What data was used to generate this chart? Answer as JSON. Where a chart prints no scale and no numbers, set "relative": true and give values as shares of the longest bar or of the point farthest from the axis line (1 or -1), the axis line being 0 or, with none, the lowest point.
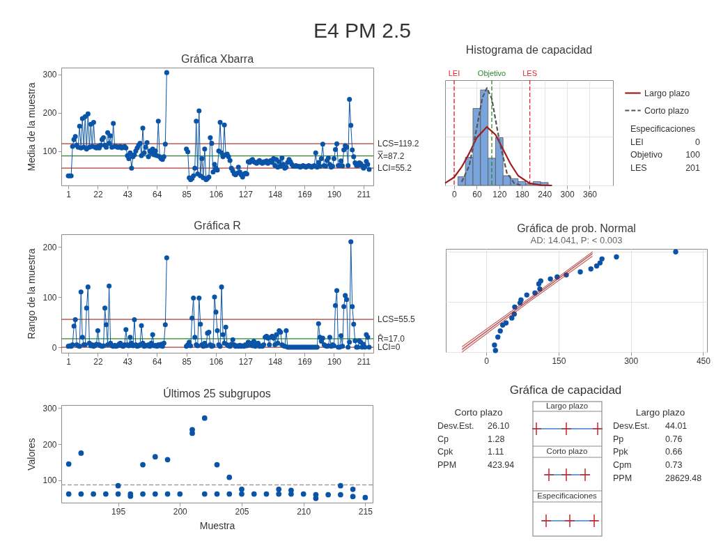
{
  "chart_data": [
    {
      "type": "other",
      "title": "E4 PM 2.5"
    },
    {
      "type": "line",
      "title": "Gráfica Xbarra",
      "ylabel": "Media de la muestra",
      "marker": "circle",
      "x": [
        1,
        2,
        3,
        4,
        5,
        6,
        7,
        8,
        9,
        10,
        11,
        12,
        13,
        14,
        15,
        16,
        17,
        18,
        19,
        20,
        21,
        22,
        23,
        24,
        25,
        26,
        27,
        28,
        29,
        30,
        31,
        32,
        33,
        34,
        35,
        36,
        37,
        38,
        39,
        40,
        41,
        42,
        43,
        44,
        45,
        46,
        47,
        48,
        49,
        50,
        51,
        52,
        53,
        54,
        55,
        56,
        57,
        58,
        59,
        60,
        61,
        62,
        63,
        64,
        65,
        66,
        67,
        68,
        69,
        70,
        71,
        72,
        73,
        74,
        75,
        76,
        77,
        78,
        79,
        80,
        81,
        82,
        83,
        84,
        85,
        86,
        87,
        88,
        89,
        90,
        91,
        92,
        93,
        94,
        95,
        96,
        97,
        98,
        99,
        100,
        101,
        102,
        103,
        104,
        105,
        106,
        107,
        108,
        109,
        110,
        111,
        112,
        113,
        114,
        115,
        116,
        117,
        118,
        119,
        120,
        121,
        122,
        123,
        124,
        125,
        126,
        127,
        128,
        129,
        130,
        131,
        132,
        133,
        134,
        135,
        136,
        137,
        138,
        139,
        140,
        141,
        142,
        143,
        144,
        145,
        146,
        147,
        148,
        149,
        150,
        151,
        152,
        153,
        154,
        155,
        156,
        157,
        158,
        159,
        160,
        161,
        162,
        163,
        164,
        165,
        166,
        167,
        168,
        169,
        170,
        171,
        172,
        173,
        174,
        175,
        176,
        177,
        178,
        179,
        180,
        181,
        182,
        183,
        184,
        185,
        186,
        187,
        188,
        189,
        190,
        191,
        192,
        193,
        194,
        195,
        196,
        197,
        198,
        199,
        200,
        201,
        202,
        203,
        204,
        205,
        206,
        207,
        208,
        209,
        210,
        211,
        212,
        213,
        214,
        215
      ],
      "xlim": [
        -4,
        218
      ],
      "xticks": [
        1,
        22,
        43,
        64,
        85,
        106,
        127,
        148,
        169,
        190,
        211
      ],
      "ylim": [
        10,
        318
      ],
      "yticks": [
        100,
        200,
        300
      ],
      "series": [
        {
          "color": "#0a54a8",
          "values": [
            35,
            35,
            35,
            112,
            130,
            138,
            115,
            110,
            165,
            108,
            185,
            110,
            190,
            105,
            197,
            110,
            170,
            112,
            175,
            110,
            108,
            112,
            108,
            115,
            130,
            135,
            115,
            110,
            148,
            120,
            140,
            110,
            172,
            112,
            112,
            110,
            110,
            112,
            108,
            110,
            112,
            108,
            88,
            80,
            95,
            55,
            85,
            90,
            100,
            108,
            115,
            120,
            88,
            160,
            95,
            110,
            122,
            85,
            100,
            95,
            105,
            90,
            100,
            88,
            178,
            85,
            80,
            78,
            85,
            118,
            305,
            null,
            null,
            null,
            null,
            null,
            null,
            null,
            null,
            null,
            null,
            null,
            null,
            null,
            105,
            98,
            30,
            25,
            28,
            35,
            55,
            178,
            40,
            205,
            35,
            80,
            30,
            105,
            25,
            28,
            32,
            135,
            120,
            45,
            65,
            55,
            50,
            100,
            175,
            95,
            85,
            168,
            90,
            92,
            85,
            75,
            55,
            48,
            40,
            38,
            42,
            58,
            45,
            38,
            32,
            40,
            42,
            40,
            72,
            70,
            75,
            78,
            72,
            70,
            68,
            72,
            75,
            70,
            68,
            72,
            70,
            74,
            68,
            72,
            75,
            70,
            80,
            62,
            78,
            58,
            72,
            60,
            82,
            65,
            55,
            58,
            70,
            78,
            72,
            65,
            60,
            60,
            62,
            60,
            60,
            58,
            60,
            62,
            60,
            58,
            60,
            62,
            60,
            58,
            60,
            62,
            95,
            58,
            70,
            60,
            80,
            118,
            62,
            60,
            75,
            82,
            65,
            58,
            60,
            80,
            104,
            119,
            62,
            62,
            74,
            61,
            103,
            114,
            110,
            62,
            235,
            167,
            103,
            85,
            69,
            62,
            62,
            69,
            67,
            62,
            55,
            60,
            73,
            65,
            52
          ]
        }
      ],
      "ref_lines": [
        {
          "axis": "y",
          "value": 119.2,
          "label": "LCS=119.2",
          "color": "#b03a32"
        },
        {
          "axis": "y",
          "value": 87.2,
          "label": "X̿=87.2",
          "color": "#2a8a2a"
        },
        {
          "axis": "y",
          "value": 55.2,
          "label": "LCI=55.2",
          "color": "#b03a32"
        }
      ]
    },
    {
      "type": "histogram",
      "title": "Histograma de capacidad",
      "relative": true,
      "bins": [
        10,
        30,
        50,
        70,
        90,
        110,
        130,
        150,
        170,
        190,
        210,
        230,
        250
      ],
      "values": [
        0.09,
        0.29,
        0.79,
        0.98,
        0.28,
        0.49,
        0.1,
        0.07,
        0.04,
        0.02,
        0.04,
        0.03
      ],
      "color": "#7aa5dc",
      "xlim": [
        -24,
        422
      ],
      "xticks": [
        0,
        60,
        120,
        180,
        240,
        300,
        360
      ],
      "grid": true,
      "legend": "right",
      "series": [
        {
          "type": "line",
          "name": "Largo plazo",
          "color": "#a01c1c",
          "x": [
            -24,
            0,
            20,
            40,
            60,
            87,
            110,
            130,
            150,
            170,
            200,
            230,
            260
          ],
          "values": [
            0.024,
            0.084,
            0.19,
            0.33,
            0.49,
            0.6,
            0.52,
            0.37,
            0.22,
            0.1,
            0.023,
            0.003,
            0
          ]
        },
        {
          "type": "line",
          "name": "Corto plazo",
          "color": "#555555",
          "line_style": "dashed",
          "x": [
            20,
            40,
            60,
            75,
            87,
            100,
            120,
            140,
            160,
            180
          ],
          "values": [
            0.036,
            0.2,
            0.59,
            0.9,
            1,
            0.89,
            0.46,
            0.13,
            0.02,
            0
          ]
        }
      ],
      "ref_lines": [
        {
          "axis": "x",
          "value": 0,
          "label": "LEI",
          "color": "#e0242a",
          "line_style": "dashed"
        },
        {
          "axis": "x",
          "value": 100,
          "label": "Objetivo",
          "color": "#2a8a2a",
          "line_style": "dashed"
        },
        {
          "axis": "x",
          "value": 201,
          "label": "LES",
          "color": "#e0242a",
          "line_style": "dashed"
        }
      ],
      "annotations": [
        "Especificaciones",
        "LEI",
        "0",
        "Objetivo",
        "100",
        "LES",
        "201"
      ]
    },
    {
      "type": "line",
      "title": "Gráfica R",
      "ylabel": "Rango de la muestra",
      "marker": "circle",
      "x": [
        1,
        2,
        3,
        4,
        5,
        6,
        7,
        8,
        9,
        10,
        11,
        12,
        13,
        14,
        15,
        16,
        17,
        18,
        19,
        20,
        21,
        22,
        23,
        24,
        25,
        26,
        27,
        28,
        29,
        30,
        31,
        32,
        33,
        34,
        35,
        36,
        37,
        38,
        39,
        40,
        41,
        42,
        43,
        44,
        45,
        46,
        47,
        48,
        49,
        50,
        51,
        52,
        53,
        54,
        55,
        56,
        57,
        58,
        59,
        60,
        61,
        62,
        63,
        64,
        65,
        66,
        67,
        68,
        69,
        70,
        71,
        72,
        73,
        74,
        75,
        76,
        77,
        78,
        79,
        80,
        81,
        82,
        83,
        84,
        85,
        86,
        87,
        88,
        89,
        90,
        91,
        92,
        93,
        94,
        95,
        96,
        97,
        98,
        99,
        100,
        101,
        102,
        103,
        104,
        105,
        106,
        107,
        108,
        109,
        110,
        111,
        112,
        113,
        114,
        115,
        116,
        117,
        118,
        119,
        120,
        121,
        122,
        123,
        124,
        125,
        126,
        127,
        128,
        129,
        130,
        131,
        132,
        133,
        134,
        135,
        136,
        137,
        138,
        139,
        140,
        141,
        142,
        143,
        144,
        145,
        146,
        147,
        148,
        149,
        150,
        151,
        152,
        153,
        154,
        155,
        156,
        157,
        158,
        159,
        160,
        161,
        162,
        163,
        164,
        165,
        166,
        167,
        168,
        169,
        170,
        171,
        172,
        173,
        174,
        175,
        176,
        177,
        178,
        179,
        180,
        181,
        182,
        183,
        184,
        185,
        186,
        187,
        188,
        189,
        190,
        191,
        192,
        193,
        194,
        195,
        196,
        197,
        198,
        199,
        200,
        201,
        202,
        203,
        204,
        205,
        206,
        207,
        208,
        209,
        210,
        211,
        212,
        213,
        214,
        215
      ],
      "xlim": [
        -4,
        218
      ],
      "xticks": [
        1,
        22,
        43,
        64,
        85,
        106,
        127,
        148,
        169,
        190,
        211
      ],
      "ylim": [
        -11,
        225
      ],
      "yticks": [
        0,
        100,
        200
      ],
      "series": [
        {
          "color": "#0a54a8",
          "values": [
            2,
            3,
            2,
            5,
            42,
            55,
            5,
            3,
            2,
            110,
            20,
            5,
            5,
            78,
            120,
            8,
            3,
            5,
            2,
            4,
            6,
            33,
            5,
            3,
            2,
            3,
            78,
            45,
            5,
            122,
            8,
            3,
            2,
            4,
            2,
            3,
            6,
            8,
            3,
            2,
            5,
            35,
            5,
            3,
            20,
            8,
            3,
            55,
            5,
            2,
            3,
            5,
            43,
            8,
            2,
            4,
            3,
            5,
            2,
            8,
            25,
            3,
            4,
            2,
            5,
            3,
            6,
            2,
            8,
            45,
            178,
            null,
            null,
            null,
            null,
            null,
            null,
            null,
            null,
            null,
            null,
            null,
            null,
            null,
            2,
            5,
            10,
            3,
            58,
            98,
            20,
            5,
            3,
            98,
            46,
            5,
            2,
            8,
            3,
            28,
            30,
            5,
            2,
            3,
            100,
            70,
            33,
            5,
            2,
            120,
            25,
            8,
            40,
            5,
            3,
            2,
            6,
            15,
            5,
            2,
            3,
            2,
            4,
            2,
            3,
            2,
            5,
            3,
            10,
            5,
            8,
            3,
            12,
            2,
            5,
            8,
            2,
            3,
            2,
            5,
            20,
            22,
            18,
            5,
            20,
            22,
            18,
            5,
            25,
            8,
            33,
            30,
            5,
            3,
            2,
            33,
            0,
            0,
            0,
            0,
            0,
            0,
            0,
            0,
            0,
            0,
            0,
            0,
            0,
            0,
            0,
            0,
            0,
            0,
            0,
            0,
            0,
            0,
            47,
            20,
            12,
            18,
            5,
            3,
            2,
            3,
            20,
            2,
            5,
            3,
            83,
            113,
            0,
            0,
            23,
            2,
            81,
            103,
            95,
            0,
            10,
            210,
            81,
            46,
            13,
            0,
            0,
            13,
            10,
            0,
            6,
            0,
            25,
            20,
            0
          ]
        }
      ],
      "ref_lines": [
        {
          "axis": "y",
          "value": 55.5,
          "label": "LCS=55.5",
          "color": "#b03a32"
        },
        {
          "axis": "y",
          "value": 17,
          "label": "R̄=17.0",
          "color": "#2a8a2a"
        },
        {
          "axis": "y",
          "value": 0,
          "label": "LCI=0",
          "color": "#b03a32"
        }
      ]
    },
    {
      "type": "scatter",
      "title": "Gráfica de prob. Normal",
      "subtitle": "AD: 14.041, P: < 0.003",
      "relative": true,
      "xlim": [
        -84,
        458
      ],
      "xticks": [
        0,
        150,
        300,
        450
      ],
      "grid": true,
      "series": [
        {
          "color": "#0a54a8",
          "x": [
            19,
            17,
            24,
            29,
            34,
            41,
            53,
            58,
            59,
            70,
            72,
            84,
            101,
            111,
            109,
            113,
            133,
            147,
            166,
            195,
            217,
            229,
            236,
            240,
            270,
            393
          ],
          "values": [
            0.016,
            0.07,
            0.15,
            0.21,
            0.27,
            0.29,
            0.34,
            0.38,
            0.45,
            0.49,
            0.52,
            0.57,
            0.59,
            0.63,
            0.68,
            0.71,
            0.73,
            0.75,
            0.77,
            0.8,
            0.83,
            0.86,
            0.89,
            0.93,
            0.95,
            1
          ]
        },
        {
          "type": "line",
          "color": "#a01c1c",
          "x": [
            -50,
            90,
            220
          ],
          "values": [
            0.028,
            0.523,
            0.982
          ],
          "lower": [
            0,
            0.505,
            0.955
          ],
          "upper": [
            0.056,
            0.54,
            1
          ]
        }
      ]
    },
    {
      "type": "scatter",
      "title": "Últimos 25 subgrupos",
      "xlabel": "Muestra",
      "ylabel": "Valores",
      "x": [
        191,
        191,
        192,
        192,
        193,
        194,
        195,
        195,
        196,
        196,
        197,
        197,
        198,
        198,
        199,
        199,
        200,
        201,
        201,
        202,
        202,
        203,
        203,
        204,
        204,
        205,
        205,
        206,
        207,
        208,
        208,
        209,
        209,
        210,
        211,
        211,
        212,
        213,
        213,
        214,
        214,
        215
      ],
      "xlim": [
        190.4,
        215.6
      ],
      "xticks": [
        195,
        200,
        205,
        210,
        215
      ],
      "ylim": [
        38,
        308
      ],
      "yticks": [
        100,
        200,
        300
      ],
      "series": [
        {
          "color": "#0a54a8",
          "values": [
            145,
            62,
            175,
            62,
            62,
            62,
            85,
            62,
            56,
            62,
            143,
            62,
            165,
            62,
            157,
            62,
            62,
            240,
            230,
            272,
            62,
            143,
            62,
            108,
            62,
            75,
            62,
            62,
            62,
            75,
            62,
            72,
            62,
            62,
            60,
            50,
            60,
            85,
            60,
            75,
            55,
            52
          ]
        }
      ],
      "ref_lines": [
        {
          "axis": "y",
          "value": 87.2,
          "color": "#a0a0a0",
          "line_style": "dashed"
        }
      ]
    },
    {
      "type": "other",
      "title": "Gráfica de capacidad",
      "annotations": [
        "Corto plazo",
        "Desv.Est.",
        "26.10",
        "Cp",
        "1.28",
        "Cpk",
        "1.11",
        "PPM",
        "423.94",
        "Largo plazo",
        "Desv.Est.",
        "44.01",
        "Pp",
        "0.76",
        "Ppk",
        "0.66",
        "Cpm",
        "0.73",
        "PPM",
        "28629.48",
        "Largo plazo",
        "Corto plazo",
        "Especificaciones"
      ]
    }
  ]
}
